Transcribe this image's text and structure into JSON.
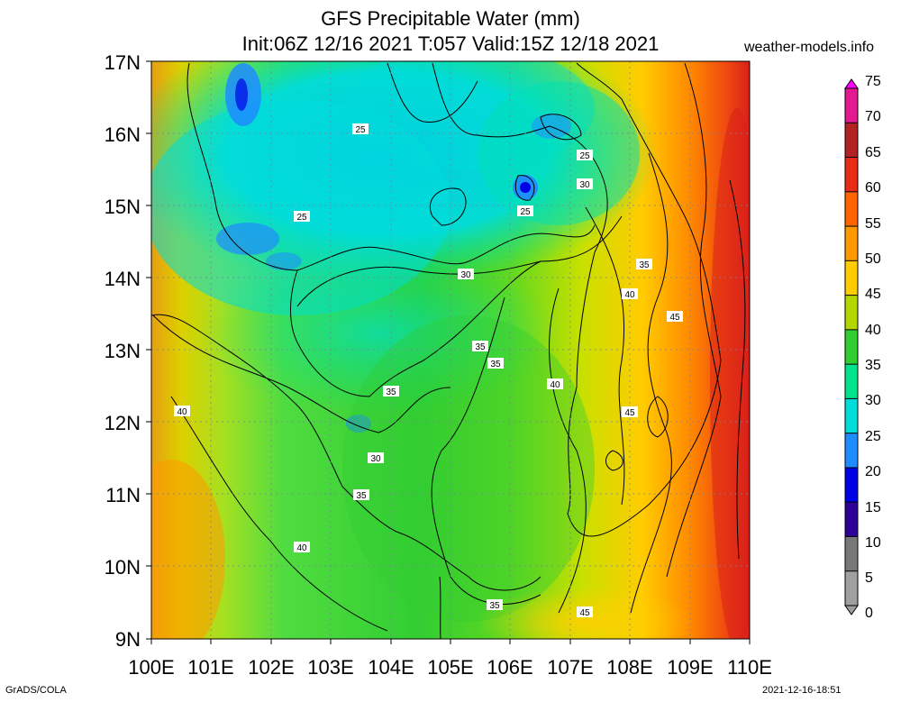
{
  "header": {
    "title_line1": "GFS Precipitable Water (mm)",
    "title_line2": "Init:06Z 12/16 2021 T:057 Valid:15Z 12/18 2021",
    "site": "weather-models.info"
  },
  "axes": {
    "lat_labels": [
      "17N",
      "16N",
      "15N",
      "14N",
      "13N",
      "12N",
      "11N",
      "10N",
      "9N"
    ],
    "lon_labels": [
      "100E",
      "101E",
      "102E",
      "103E",
      "104E",
      "105E",
      "106E",
      "107E",
      "108E",
      "109E",
      "110E"
    ]
  },
  "colorbar": {
    "labels": [
      "75",
      "70",
      "65",
      "60",
      "55",
      "50",
      "45",
      "40",
      "35",
      "30",
      "25",
      "20",
      "15",
      "10",
      "5",
      "0"
    ],
    "colors": [
      "#ff00ff",
      "#e3198f",
      "#b22222",
      "#e82c18",
      "#ff6400",
      "#ff9900",
      "#ffcc00",
      "#b4d700",
      "#32cd32",
      "#00e38c",
      "#00dcdc",
      "#1e8cff",
      "#0000e6",
      "#2d0096",
      "#787878",
      "#a0a0a0"
    ]
  },
  "contour_labels": [
    "25",
    "25",
    "25",
    "30",
    "25",
    "30",
    "35",
    "40",
    "45",
    "35",
    "35",
    "40",
    "35",
    "40",
    "30",
    "45",
    "35",
    "40",
    "35",
    "45"
  ],
  "footer": {
    "left": "GrADS/COLA",
    "right": "2021-12-16-18:51"
  }
}
